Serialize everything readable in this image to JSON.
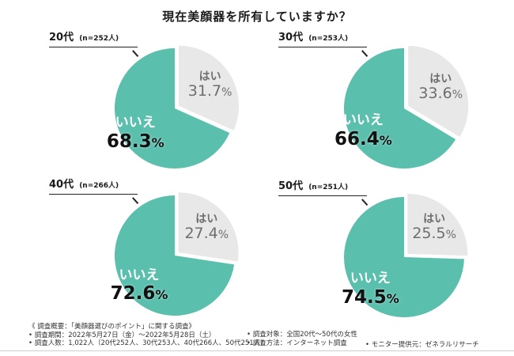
{
  "title": "現在美顔器を所有していますか？",
  "colors": {
    "yes_slice": "#e8e8e8",
    "no_slice": "#5bbfae"
  },
  "chart_data": [
    {
      "type": "pie",
      "group_label": "20代",
      "n_label": "(n=252人)",
      "slices": [
        {
          "label": "はい",
          "value": 31.7
        },
        {
          "label": "いいえ",
          "value": 68.3
        }
      ]
    },
    {
      "type": "pie",
      "group_label": "30代",
      "n_label": "(n=253人)",
      "slices": [
        {
          "label": "はい",
          "value": 33.6
        },
        {
          "label": "いいえ",
          "value": 66.4
        }
      ]
    },
    {
      "type": "pie",
      "group_label": "40代",
      "n_label": "(n=266人)",
      "slices": [
        {
          "label": "はい",
          "value": 27.4
        },
        {
          "label": "いいえ",
          "value": 72.6
        }
      ]
    },
    {
      "type": "pie",
      "group_label": "50代",
      "n_label": "(n=251人)",
      "slices": [
        {
          "label": "はい",
          "value": 25.5
        },
        {
          "label": "いいえ",
          "value": 74.5
        }
      ]
    }
  ],
  "footer": {
    "col1": [
      "《 調査概要：「美顔器選びのポイント」に関する調査》",
      "• 調査期間：2022年5月27日（金）～2022年5月28日（土）",
      "• 調査人数：1,022人（20代252人、30代253人、40代266人、50代251人）"
    ],
    "col2": [
      "• 調査対象：全国20代～50代の女性",
      "• 調査方法：インターネット調査"
    ],
    "col3": [
      "• モニター提供元：ゼネラルリサーチ"
    ]
  }
}
